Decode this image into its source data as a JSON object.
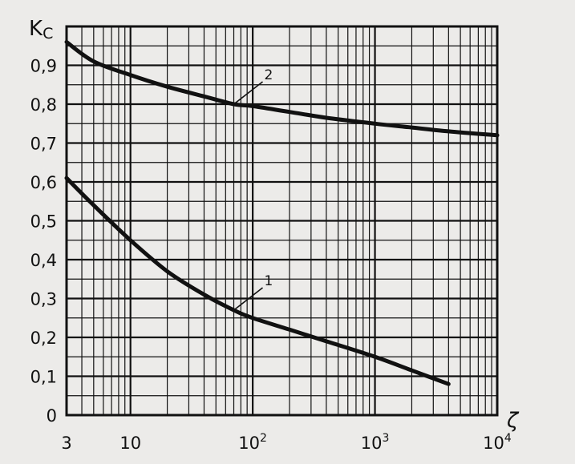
{
  "chart_data": {
    "type": "line",
    "x_scale": "log",
    "xlim": [
      3,
      10000
    ],
    "ylim": [
      0,
      1.0
    ],
    "grid": true,
    "ylabel": {
      "main": "K",
      "sub": "C"
    },
    "xlabel": "ζ",
    "y_ticks": [
      "0",
      "0,1",
      "0,2",
      "0,3",
      "0,4",
      "0,5",
      "0,6",
      "0,7",
      "0,8",
      "0,9"
    ],
    "x_ticks": [
      {
        "value": 3,
        "label": "3",
        "exp": ""
      },
      {
        "value": 10,
        "label": "10",
        "exp": ""
      },
      {
        "value": 100,
        "label": "10",
        "exp": "2"
      },
      {
        "value": 1000,
        "label": "10",
        "exp": "3"
      },
      {
        "value": 10000,
        "label": "10",
        "exp": "4"
      }
    ],
    "series": [
      {
        "name": "1",
        "x": [
          3,
          5,
          10,
          20,
          40,
          70,
          100,
          200,
          400,
          1000,
          2000,
          4000
        ],
        "y": [
          0.61,
          0.54,
          0.45,
          0.37,
          0.31,
          0.27,
          0.25,
          0.22,
          0.19,
          0.15,
          0.115,
          0.08
        ]
      },
      {
        "name": "2",
        "x": [
          3,
          5,
          10,
          20,
          40,
          70,
          100,
          200,
          400,
          1000,
          2000,
          4000,
          10000
        ],
        "y": [
          0.96,
          0.91,
          0.875,
          0.845,
          0.82,
          0.8,
          0.795,
          0.78,
          0.765,
          0.75,
          0.74,
          0.73,
          0.72
        ]
      }
    ]
  }
}
